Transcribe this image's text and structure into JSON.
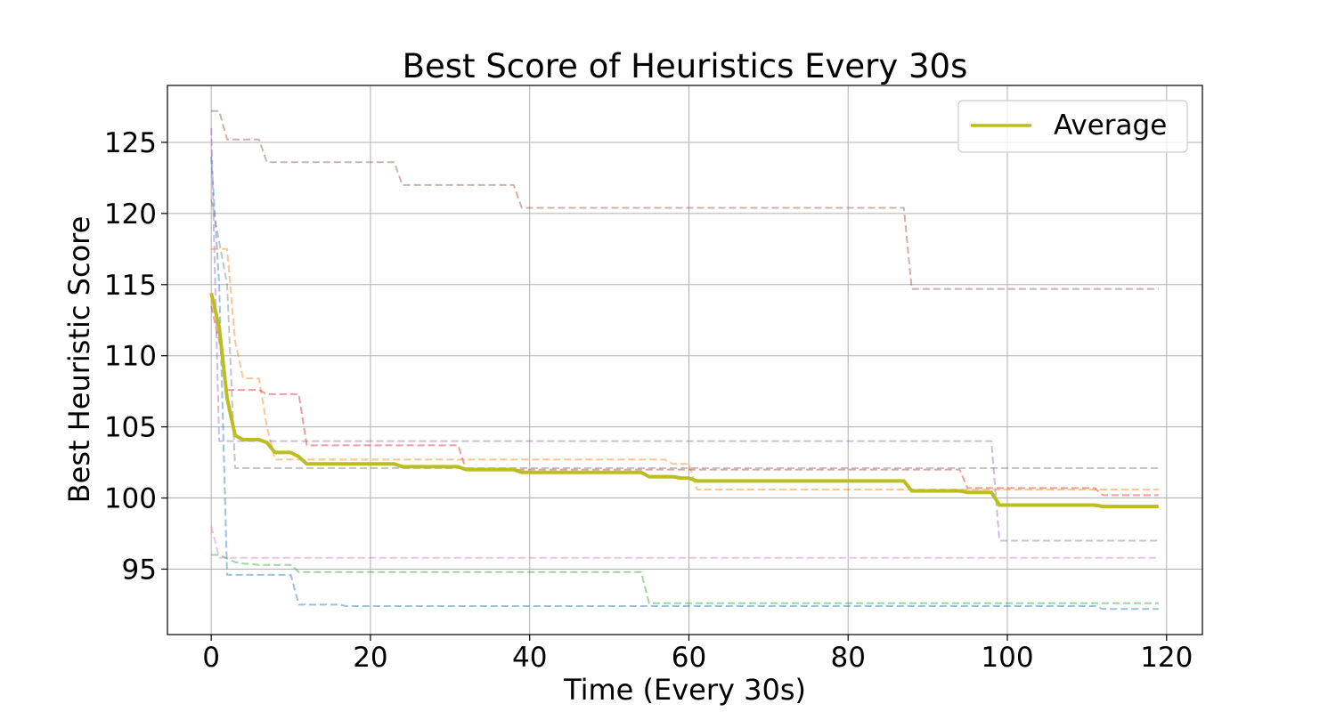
{
  "chart_data": {
    "type": "line",
    "title": "Best Score of Heuristics Every 30s",
    "xlabel": "Time (Every 30s)",
    "ylabel": "Best Heuristic Score",
    "xlim": [
      -5.5,
      124.5
    ],
    "ylim": [
      90.4,
      129.0
    ],
    "xticks": [
      0,
      20,
      40,
      60,
      80,
      100,
      120
    ],
    "yticks": [
      95,
      100,
      105,
      110,
      115,
      120,
      125
    ],
    "grid": true,
    "legend": {
      "placement": "top-right",
      "entries": [
        "Average"
      ]
    },
    "series": [
      {
        "name": "Average",
        "color": "#bcbd22",
        "style": "solid",
        "x": [
          0,
          1,
          2,
          3,
          4,
          5,
          6,
          7,
          8,
          9,
          10,
          11,
          12,
          14,
          16,
          18,
          20,
          22,
          23,
          24,
          26,
          28,
          30,
          31,
          32,
          34,
          36,
          38,
          39,
          40,
          42,
          44,
          46,
          48,
          50,
          52,
          54,
          55,
          56,
          58,
          59,
          60,
          61,
          62,
          64,
          66,
          68,
          70,
          72,
          74,
          76,
          78,
          80,
          82,
          84,
          86,
          87,
          88,
          90,
          92,
          94,
          95,
          96,
          98,
          99,
          100,
          102,
          104,
          106,
          108,
          110,
          111,
          112,
          114,
          116,
          118,
          119
        ],
        "y": [
          114.4,
          112.0,
          107.0,
          104.4,
          104.1,
          104.1,
          104.1,
          103.9,
          103.2,
          103.2,
          103.2,
          102.9,
          102.4,
          102.4,
          102.4,
          102.4,
          102.4,
          102.4,
          102.4,
          102.2,
          102.2,
          102.2,
          102.2,
          102.2,
          102.0,
          102.0,
          102.0,
          102.0,
          101.8,
          101.8,
          101.8,
          101.8,
          101.8,
          101.8,
          101.8,
          101.8,
          101.8,
          101.5,
          101.5,
          101.5,
          101.4,
          101.4,
          101.2,
          101.2,
          101.2,
          101.2,
          101.2,
          101.2,
          101.2,
          101.2,
          101.2,
          101.2,
          101.2,
          101.2,
          101.2,
          101.2,
          101.2,
          100.5,
          100.5,
          100.5,
          100.5,
          100.4,
          100.4,
          100.4,
          99.5,
          99.5,
          99.5,
          99.5,
          99.5,
          99.5,
          99.5,
          99.5,
          99.4,
          99.4,
          99.4,
          99.4,
          99.4
        ]
      },
      {
        "color": "#1f77b4",
        "style": "dashed",
        "x": [
          0,
          1,
          2,
          3,
          10,
          11,
          16,
          17,
          110,
          111,
          112,
          119
        ],
        "y": [
          124.0,
          115.0,
          94.6,
          94.6,
          94.6,
          92.5,
          92.5,
          92.4,
          92.4,
          92.4,
          92.2,
          92.2
        ]
      },
      {
        "color": "#ff7f0e",
        "style": "dashed",
        "x": [
          0,
          1,
          2,
          3,
          4,
          6,
          7,
          8,
          12,
          57,
          58,
          60,
          61,
          98,
          99,
          119
        ],
        "y": [
          117.5,
          117.5,
          117.5,
          111.0,
          108.4,
          108.4,
          105.0,
          102.7,
          102.7,
          102.7,
          102.4,
          102.4,
          100.6,
          100.6,
          100.6,
          100.6
        ]
      },
      {
        "color": "#2ca02c",
        "style": "dashed",
        "x": [
          0,
          1,
          3,
          4,
          6,
          10,
          11,
          54,
          55,
          119
        ],
        "y": [
          96.0,
          96.0,
          95.5,
          95.4,
          95.3,
          95.3,
          94.8,
          94.8,
          92.6,
          92.6
        ]
      },
      {
        "color": "#d62728",
        "style": "dashed",
        "x": [
          0,
          1,
          2,
          6,
          7,
          11,
          12,
          31,
          32,
          94,
          95,
          111,
          112,
          119
        ],
        "y": [
          113.5,
          111.0,
          107.6,
          107.6,
          107.3,
          107.3,
          103.7,
          103.7,
          102.0,
          102.0,
          100.7,
          100.7,
          100.2,
          100.2
        ]
      },
      {
        "color": "#9467bd",
        "style": "dashed",
        "x": [
          0,
          1,
          2,
          98,
          99,
          119
        ],
        "y": [
          126.0,
          104.0,
          104.0,
          104.0,
          97.0,
          97.0
        ]
      },
      {
        "color": "#8c564b",
        "style": "dashed",
        "x": [
          0,
          1,
          2,
          6,
          7,
          23,
          24,
          38,
          39,
          87,
          88,
          119
        ],
        "y": [
          127.2,
          127.2,
          125.2,
          125.2,
          123.6,
          123.6,
          122.0,
          122.0,
          120.4,
          120.4,
          114.7,
          114.7
        ]
      },
      {
        "color": "#e377c2",
        "style": "dashed",
        "x": [
          0,
          1,
          119
        ],
        "y": [
          98.0,
          95.8,
          95.8
        ]
      },
      {
        "color": "#7f7f7f",
        "style": "dashed",
        "x": [
          0,
          2,
          3,
          119
        ],
        "y": [
          121.0,
          115.0,
          102.1,
          102.1
        ]
      }
    ]
  }
}
